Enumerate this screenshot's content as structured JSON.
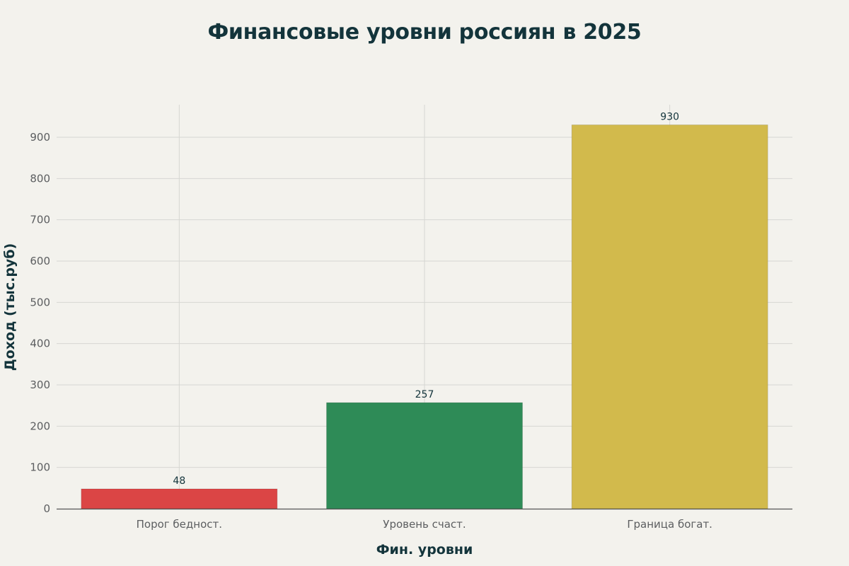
{
  "chart_data": {
    "type": "bar",
    "title": "Финансовые уровни россиян в 2025",
    "xlabel": "Фин. уровни",
    "ylabel": "Доход (тыс.руб)",
    "categories": [
      "Порог бедност.",
      "Уровень счаст.",
      "Граница богат."
    ],
    "values": [
      48,
      257,
      930
    ],
    "data_labels": [
      "48",
      "257",
      "930"
    ],
    "colors": [
      "#db4545",
      "#2e8b57",
      "#d2ba4c"
    ],
    "ylim": [
      0,
      980
    ],
    "yticks": [
      0,
      100,
      200,
      300,
      400,
      500,
      600,
      700,
      800,
      900
    ],
    "ytick_labels": [
      "0",
      "100",
      "200",
      "300",
      "400",
      "500",
      "600",
      "700",
      "800",
      "900"
    ],
    "grid": true,
    "legend": "none"
  },
  "colors": {
    "background": "#f3f2ed",
    "text": "#13343b",
    "gridline": "#d6d6d2",
    "axis_line": "#555555"
  }
}
